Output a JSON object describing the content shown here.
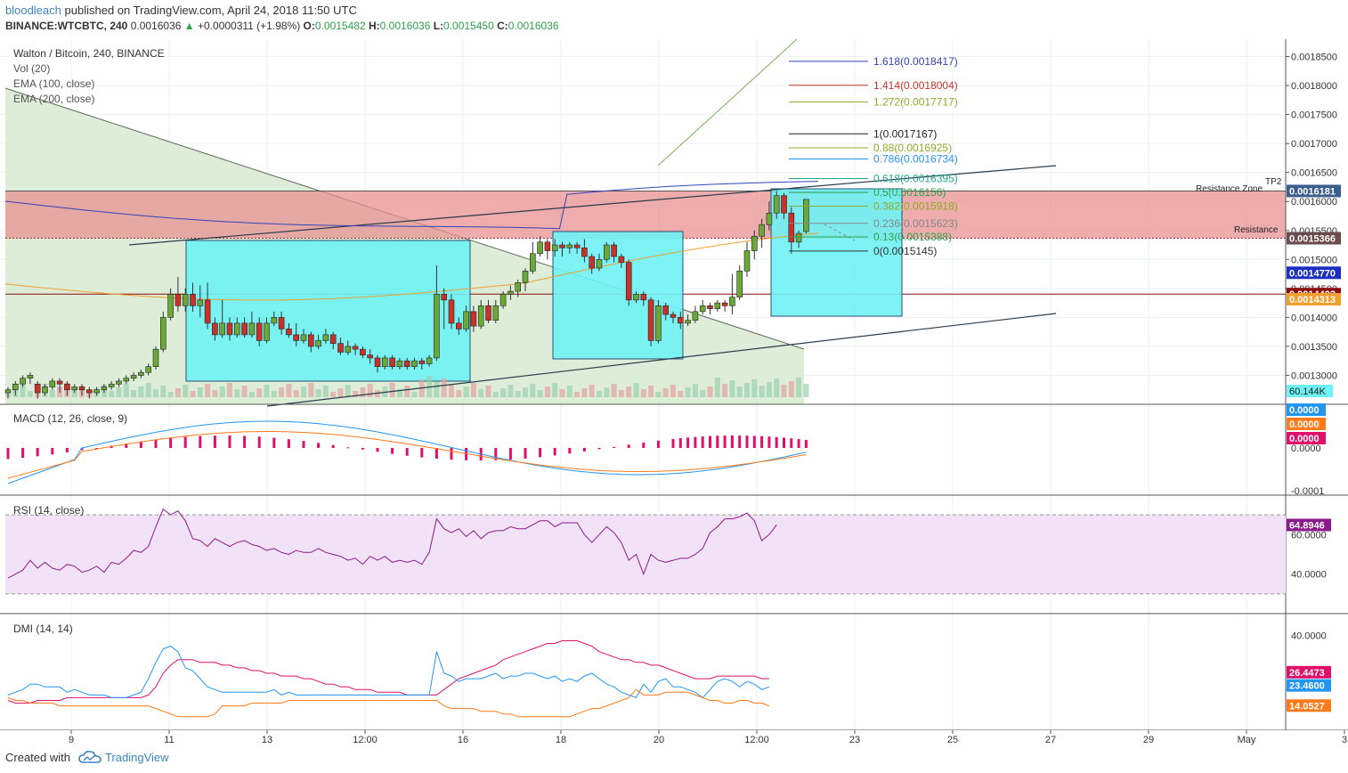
{
  "header": {
    "author": "bloodleach",
    "published": "published on TradingView.com, April 24, 2018 11:50 UTC",
    "symbol": "BINANCE:WTCBTC, 240",
    "last": "0.0016036",
    "change": "+0.0000311 (+1.98%)",
    "o_label": "O:",
    "o_val": "0.0015482",
    "h_label": "H:",
    "h_val": "0.0016036",
    "l_label": "L:",
    "l_val": "0.0015450",
    "c_label": "C:",
    "c_val": "0.0016036"
  },
  "footer": {
    "created_with": "Created with",
    "brand": "TradingView"
  },
  "colors": {
    "up": "#6ba83a",
    "down": "#c9322a",
    "ema100": "#3344b8",
    "ema200": "#f0a030",
    "box": "#6ff2f5",
    "resistance_zone": "#e89090",
    "triangle": "#d8ead0",
    "macd": "#2196f3",
    "signal": "#ff7a1a",
    "hist": "#e0106a",
    "rsi": "#8d1a8d",
    "rsi_band": "#f1e2f8",
    "dmi_plus": "#2196f3",
    "dmi_minus": "#ff7a1a",
    "adx": "#e0106a"
  },
  "chart_data": {
    "type": "candlestick",
    "title": "Walton / Bitcoin, 240, BINANCE",
    "indicators": [
      "Vol (20)",
      "EMA (100, close)",
      "EMA (200, close)"
    ],
    "ylim": [
      0.00125,
      0.00188
    ],
    "ticks": [
      "0.0018500",
      "0.0018000",
      "0.0017500",
      "0.0017000",
      "0.0016500",
      "0.0016000",
      "0.0015500",
      "0.0015000",
      "0.0014500",
      "0.0014000",
      "0.0013500",
      "0.0013000"
    ],
    "x_labels": [
      "9",
      "11",
      "13",
      "12:00",
      "16",
      "18",
      "20",
      "12:00",
      "23",
      "25",
      "27",
      "29",
      "May",
      "3"
    ],
    "candles": [
      [
        0.00127,
        0.001275,
        0.00126,
        0.00128
      ],
      [
        0.001275,
        0.001285,
        0.001265,
        0.00129
      ],
      [
        0.001285,
        0.001295,
        0.00128,
        0.0013
      ],
      [
        0.001295,
        0.0013,
        0.001285,
        0.001305
      ],
      [
        0.001285,
        0.00127,
        0.00126,
        0.00129
      ],
      [
        0.00127,
        0.00128,
        0.001265,
        0.001285
      ],
      [
        0.00128,
        0.00129,
        0.001275,
        0.001295
      ],
      [
        0.00129,
        0.001285,
        0.00127,
        0.001295
      ],
      [
        0.001285,
        0.001275,
        0.001265,
        0.00129
      ],
      [
        0.001275,
        0.00128,
        0.00127,
        0.001285
      ],
      [
        0.00128,
        0.001275,
        0.001265,
        0.001285
      ],
      [
        0.001275,
        0.00127,
        0.00126,
        0.00128
      ],
      [
        0.00127,
        0.001275,
        0.001265,
        0.00128
      ],
      [
        0.001275,
        0.00128,
        0.00127,
        0.001285
      ],
      [
        0.00128,
        0.001285,
        0.001275,
        0.00129
      ],
      [
        0.001285,
        0.00129,
        0.00128,
        0.001295
      ],
      [
        0.00129,
        0.001295,
        0.001285,
        0.0013
      ],
      [
        0.001295,
        0.0013,
        0.00129,
        0.001305
      ],
      [
        0.0013,
        0.001305,
        0.001295,
        0.00131
      ],
      [
        0.001305,
        0.001315,
        0.0013,
        0.00132
      ],
      [
        0.001315,
        0.001345,
        0.00131,
        0.00135
      ],
      [
        0.001345,
        0.0014,
        0.00134,
        0.00141
      ],
      [
        0.0014,
        0.00144,
        0.001395,
        0.00145
      ],
      [
        0.00144,
        0.00142,
        0.00141,
        0.00147
      ],
      [
        0.00142,
        0.00144,
        0.00141,
        0.00145
      ],
      [
        0.00144,
        0.00142,
        0.00141,
        0.00146
      ],
      [
        0.00142,
        0.00143,
        0.0014,
        0.001455
      ],
      [
        0.00143,
        0.00139,
        0.00138,
        0.00146
      ],
      [
        0.00139,
        0.00137,
        0.00136,
        0.0014
      ],
      [
        0.00137,
        0.00139,
        0.001365,
        0.00143
      ],
      [
        0.00139,
        0.00137,
        0.00136,
        0.0014
      ],
      [
        0.00137,
        0.00139,
        0.001365,
        0.0014
      ],
      [
        0.00139,
        0.00137,
        0.001365,
        0.0014
      ],
      [
        0.00137,
        0.00139,
        0.001365,
        0.00141
      ],
      [
        0.00139,
        0.00136,
        0.00135,
        0.0014
      ],
      [
        0.00136,
        0.00139,
        0.001355,
        0.0014
      ],
      [
        0.00139,
        0.0014,
        0.001385,
        0.00141
      ],
      [
        0.0014,
        0.00138,
        0.00137,
        0.00141
      ],
      [
        0.00138,
        0.00137,
        0.001365,
        0.00139
      ],
      [
        0.00137,
        0.00136,
        0.00135,
        0.00139
      ],
      [
        0.00136,
        0.00137,
        0.001355,
        0.00138
      ],
      [
        0.00137,
        0.00135,
        0.00134,
        0.001375
      ],
      [
        0.00135,
        0.00136,
        0.001345,
        0.00137
      ],
      [
        0.00136,
        0.00137,
        0.001355,
        0.00138
      ],
      [
        0.00137,
        0.001355,
        0.001345,
        0.001375
      ],
      [
        0.001355,
        0.00134,
        0.001335,
        0.001365
      ],
      [
        0.00134,
        0.00135,
        0.001335,
        0.00136
      ],
      [
        0.00135,
        0.001345,
        0.001335,
        0.001355
      ],
      [
        0.001345,
        0.001335,
        0.00133,
        0.00135
      ],
      [
        0.001335,
        0.00133,
        0.00132,
        0.001345
      ],
      [
        0.00133,
        0.001315,
        0.001305,
        0.001335
      ],
      [
        0.001315,
        0.00133,
        0.00131,
        0.001335
      ],
      [
        0.00133,
        0.001315,
        0.00131,
        0.001335
      ],
      [
        0.001315,
        0.001325,
        0.00131,
        0.00133
      ],
      [
        0.001325,
        0.001315,
        0.00131,
        0.00133
      ],
      [
        0.001315,
        0.001325,
        0.00131,
        0.00133
      ],
      [
        0.001325,
        0.00132,
        0.00131,
        0.00133
      ],
      [
        0.00132,
        0.00133,
        0.001315,
        0.001335
      ],
      [
        0.00133,
        0.00144,
        0.001325,
        0.00149
      ],
      [
        0.00144,
        0.00143,
        0.00138,
        0.00145
      ],
      [
        0.00143,
        0.00139,
        0.00138,
        0.00144
      ],
      [
        0.00139,
        0.00138,
        0.00137,
        0.0014
      ],
      [
        0.00138,
        0.00141,
        0.001375,
        0.00142
      ],
      [
        0.00141,
        0.001385,
        0.001375,
        0.00142
      ],
      [
        0.001385,
        0.00142,
        0.00138,
        0.00143
      ],
      [
        0.00142,
        0.001395,
        0.00139,
        0.00143
      ],
      [
        0.001395,
        0.00142,
        0.00139,
        0.00143
      ],
      [
        0.00142,
        0.00144,
        0.001415,
        0.001445
      ],
      [
        0.00144,
        0.001445,
        0.00143,
        0.001455
      ],
      [
        0.001445,
        0.00146,
        0.001435,
        0.001465
      ],
      [
        0.00146,
        0.00148,
        0.001445,
        0.001485
      ],
      [
        0.00148,
        0.00151,
        0.001475,
        0.00153
      ],
      [
        0.00151,
        0.00153,
        0.001505,
        0.00154
      ],
      [
        0.00153,
        0.001515,
        0.0015,
        0.001535
      ],
      [
        0.001515,
        0.001525,
        0.001505,
        0.001535
      ],
      [
        0.001525,
        0.00152,
        0.001505,
        0.00153
      ],
      [
        0.00152,
        0.001525,
        0.00151,
        0.00153
      ],
      [
        0.001525,
        0.00152,
        0.00151,
        0.00153
      ],
      [
        0.00152,
        0.001505,
        0.001495,
        0.001535
      ],
      [
        0.001505,
        0.001485,
        0.001475,
        0.00151
      ],
      [
        0.001485,
        0.0015,
        0.00148,
        0.00151
      ],
      [
        0.0015,
        0.001525,
        0.001495,
        0.00153
      ],
      [
        0.001525,
        0.001505,
        0.001495,
        0.00153
      ],
      [
        0.001505,
        0.001495,
        0.001485,
        0.00151
      ],
      [
        0.001495,
        0.00143,
        0.00142,
        0.0015
      ],
      [
        0.00143,
        0.00144,
        0.001425,
        0.001445
      ],
      [
        0.00144,
        0.00143,
        0.00142,
        0.001445
      ],
      [
        0.00143,
        0.00136,
        0.00135,
        0.001435
      ],
      [
        0.00136,
        0.00142,
        0.001355,
        0.00143
      ],
      [
        0.00142,
        0.001405,
        0.001395,
        0.001425
      ],
      [
        0.001405,
        0.0014,
        0.00139,
        0.00141
      ],
      [
        0.0014,
        0.00139,
        0.00138,
        0.00141
      ],
      [
        0.00139,
        0.001395,
        0.001385,
        0.001405
      ],
      [
        0.001395,
        0.00141,
        0.00139,
        0.00142
      ],
      [
        0.00141,
        0.00142,
        0.001405,
        0.00143
      ],
      [
        0.00142,
        0.001415,
        0.001405,
        0.001425
      ],
      [
        0.001415,
        0.001425,
        0.00141,
        0.00143
      ],
      [
        0.001425,
        0.00142,
        0.00141,
        0.00143
      ],
      [
        0.00142,
        0.001435,
        0.001405,
        0.001475
      ],
      [
        0.001435,
        0.00148,
        0.00143,
        0.00149
      ],
      [
        0.00148,
        0.001515,
        0.00147,
        0.00153
      ],
      [
        0.001515,
        0.00154,
        0.0015,
        0.00155
      ],
      [
        0.00154,
        0.00156,
        0.00152,
        0.00157
      ],
      [
        0.00156,
        0.00158,
        0.00155,
        0.0016
      ],
      [
        0.00158,
        0.00161,
        0.00157,
        0.001618
      ],
      [
        0.00161,
        0.00158,
        0.00157,
        0.001615
      ],
      [
        0.00158,
        0.00153,
        0.00151,
        0.00159
      ],
      [
        0.00153,
        0.001545,
        0.00152,
        0.00155
      ],
      [
        0.0015482,
        0.0016036,
        0.001545,
        0.0016036
      ]
    ],
    "volume_label": "60.144K",
    "price_tags": [
      {
        "value": "0.0016181",
        "y": 0.0016181,
        "color": "#3b5e8c"
      },
      {
        "value": "0.0015366",
        "y": 0.0015366,
        "color": "#6b4b4b"
      },
      {
        "value": "0.0014770",
        "y": 0.001477,
        "color": "#1d2fc0"
      },
      {
        "value": "0.0014402",
        "y": 0.0014402,
        "color": "#8b0c0c"
      },
      {
        "value": "0.0014313",
        "y": 0.0014313,
        "color": "#f0a030"
      }
    ],
    "fib_levels": [
      {
        "label": "1.618(0.0018417)",
        "y": 0.0018417,
        "color": "#3344b8"
      },
      {
        "label": "1.414(0.0018004)",
        "y": 0.0018004,
        "color": "#c9322a"
      },
      {
        "label": "1.272(0.0017717)",
        "y": 0.0017717,
        "color": "#8dab29"
      },
      {
        "label": "1(0.0017167)",
        "y": 0.0017167,
        "color": "#222222"
      },
      {
        "label": "0.88(0.0016925)",
        "y": 0.0016925,
        "color": "#8dab29"
      },
      {
        "label": "0.786(0.0016734)",
        "y": 0.0016734,
        "color": "#2196f3"
      },
      {
        "label": "0.618(0.0016395)",
        "y": 0.0016395,
        "color": "#1faa8a"
      },
      {
        "label": "0.5(0.0016156)",
        "y": 0.0016156,
        "color": "#2fa04a"
      },
      {
        "label": "0.382(0.0015918)",
        "y": 0.0015918,
        "color": "#8dab29"
      },
      {
        "label": "0.236(0.0015623)",
        "y": 0.0015623,
        "color": "#888888"
      },
      {
        "label": "0.13(0.0015388)",
        "y": 0.0015388,
        "color": "#2fa04a"
      },
      {
        "label": "0(0.0015145)",
        "y": 0.0015145,
        "color": "#333333"
      }
    ],
    "annotations": {
      "tp2": "TP2",
      "resistance_zone": "Resistance Zone",
      "resistance": "Resistance"
    },
    "macd": {
      "title": "MACD (12, 26, close, 9)",
      "ticks": [
        "0.0000",
        "-0.0001"
      ],
      "tags": [
        "0.0000",
        "0.0000",
        "0.0000"
      ]
    },
    "rsi": {
      "title": "RSI (14, close)",
      "ticks": [
        "60.0000",
        "40.0000"
      ],
      "tag": "64.8946",
      "band": [
        30,
        70
      ],
      "values": [
        38,
        40,
        42,
        47,
        43,
        46,
        43,
        42,
        45,
        44,
        41,
        42,
        44,
        41,
        46,
        45,
        48,
        52,
        51,
        54,
        64,
        73,
        70,
        72,
        67,
        58,
        57,
        54,
        58,
        56,
        54,
        56,
        57,
        55,
        54,
        52,
        53,
        51,
        50,
        52,
        51,
        51,
        53,
        51,
        50,
        49,
        47,
        48,
        45,
        49,
        47,
        49,
        46,
        47,
        46,
        47,
        45,
        51,
        68,
        63,
        61,
        63,
        59,
        62,
        58,
        61,
        62,
        62,
        64,
        63,
        63,
        65,
        67,
        67,
        64,
        66,
        66,
        66,
        60,
        56,
        60,
        64,
        61,
        56,
        47,
        50,
        40,
        50,
        47,
        46,
        47,
        48,
        48,
        50,
        53,
        61,
        64,
        68,
        68,
        69,
        71,
        67,
        57,
        60,
        65
      ]
    },
    "dmi": {
      "title": "DMI (14, 14)",
      "ticks": [
        "40.0000"
      ],
      "tags": [
        "26.4473",
        "23.4600",
        "14.0527"
      ],
      "plus": [
        18,
        19,
        20,
        22,
        22,
        21,
        21,
        21,
        19,
        20,
        19,
        18,
        18,
        18,
        17,
        17,
        17,
        18,
        19,
        24,
        30,
        35,
        36,
        34,
        28,
        27,
        24,
        21,
        20,
        19,
        19,
        19,
        19,
        19,
        19,
        19,
        20,
        18,
        19,
        18,
        18,
        18,
        18,
        18,
        18,
        18,
        18,
        18,
        18,
        18,
        18,
        18,
        18,
        18,
        18,
        18,
        18,
        18,
        34,
        26,
        25,
        23,
        24,
        24,
        24,
        25,
        26,
        24,
        25,
        25,
        26,
        26,
        25,
        24,
        25,
        23,
        24,
        23,
        25,
        26,
        24,
        22,
        21,
        19,
        18,
        17,
        22,
        19,
        23,
        24,
        21,
        21,
        20,
        19,
        17,
        20,
        23,
        24,
        23,
        21,
        23,
        22,
        20,
        21
      ],
      "minus": [
        17,
        16,
        16,
        15,
        15,
        15,
        15,
        14,
        14,
        14,
        14,
        14,
        14,
        14,
        14,
        14,
        14,
        14,
        14,
        14,
        13,
        12,
        11,
        10,
        10,
        10,
        10,
        10,
        11,
        14,
        14,
        14,
        14,
        15,
        15,
        15,
        15,
        15,
        16,
        16,
        16,
        16,
        16,
        16,
        16,
        16,
        16,
        16,
        16,
        16,
        16,
        16,
        16,
        16,
        16,
        16,
        16,
        16,
        16,
        14,
        13,
        13,
        13,
        13,
        12,
        12,
        12,
        11,
        11,
        10,
        10,
        10,
        10,
        10,
        10,
        10,
        10,
        11,
        12,
        13,
        13,
        14,
        15,
        16,
        17,
        20,
        18,
        18,
        18,
        19,
        19,
        19,
        19,
        18,
        17,
        16,
        16,
        15,
        15,
        16,
        16,
        15,
        15,
        14
      ],
      "adx": [
        16,
        15,
        15,
        15,
        16,
        16,
        16,
        16,
        17,
        17,
        17,
        17,
        17,
        17,
        17,
        17,
        17,
        17,
        17,
        18,
        21,
        26,
        29,
        31,
        31,
        31,
        30,
        30,
        30,
        29,
        29,
        28,
        28,
        27,
        27,
        26,
        26,
        25,
        25,
        25,
        24,
        24,
        23,
        22,
        22,
        21,
        21,
        20,
        20,
        20,
        19,
        19,
        19,
        19,
        18,
        18,
        18,
        18,
        18,
        20,
        22,
        24,
        25,
        26,
        27,
        28,
        29,
        31,
        32,
        33,
        34,
        35,
        36,
        37,
        37,
        38,
        38,
        38,
        37,
        36,
        34,
        33,
        32,
        31,
        31,
        30,
        30,
        29,
        29,
        28,
        27,
        26,
        25,
        24,
        24,
        24,
        25,
        25,
        25,
        25,
        25,
        25,
        24,
        24
      ]
    },
    "levels": {
      "ema100_label": "EMA (100, close)",
      "ema200_label": "EMA (200, close)"
    }
  }
}
